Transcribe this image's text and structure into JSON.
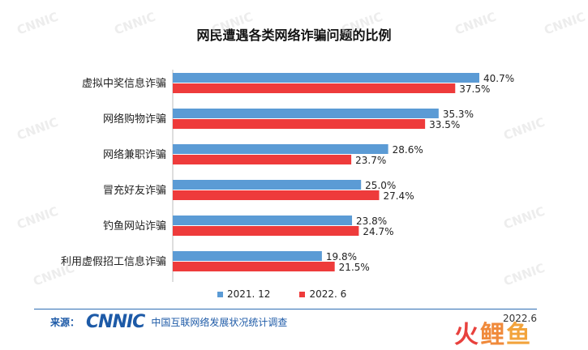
{
  "watermark": "CNNIC",
  "source": {
    "label": "来源：",
    "logo": "CNNIC",
    "org": "中国互联网络发展状况统计调查"
  },
  "date": "2022.6",
  "brand": [
    "火",
    "鲤",
    "鱼"
  ],
  "colors": {
    "series1": "#5b9bd5",
    "series2": "#ee3b3b"
  },
  "chart_data": {
    "type": "bar",
    "orientation": "horizontal",
    "title": "网民遭遇各类网络诈骗问题的比例",
    "categories": [
      "虚拟中奖信息诈骗",
      "网络购物诈骗",
      "网络兼职诈骗",
      "冒充好友诈骗",
      "钓鱼网站诈骗",
      "利用虚假招工信息诈骗"
    ],
    "series": [
      {
        "name": "2021. 12",
        "values": [
          40.7,
          35.3,
          28.6,
          25.0,
          23.8,
          19.8
        ],
        "labels": [
          "40.7%",
          "35.3%",
          "28.6%",
          "25.0%",
          "23.8%",
          "19.8%"
        ]
      },
      {
        "name": "2022. 6",
        "values": [
          37.5,
          33.5,
          23.7,
          27.4,
          24.7,
          21.5
        ],
        "labels": [
          "37.5%",
          "33.5%",
          "23.7%",
          "27.4%",
          "24.7%",
          "21.5%"
        ]
      }
    ],
    "xlim": [
      0,
      45
    ],
    "grid": false,
    "legend": "bottom"
  }
}
